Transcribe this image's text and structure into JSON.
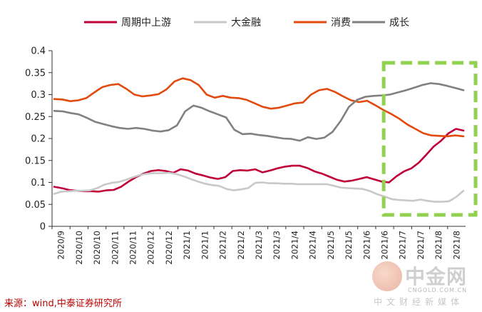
{
  "chart_data": {
    "type": "line",
    "legend_position": "top",
    "grid": false,
    "ylim": [
      0,
      0.4
    ],
    "y_ticks": [
      0,
      0.05,
      0.1,
      0.15,
      0.2,
      0.25,
      0.3,
      0.35,
      0.4
    ],
    "y_tick_labels": [
      "0",
      "0.05",
      "0.1",
      "0.15",
      "0.2",
      "0.25",
      "0.3",
      "0.35",
      "0.4"
    ],
    "x_tick_labels": [
      "2020/9",
      "2020/10",
      "2020/10",
      "2020/11",
      "2020/11",
      "2020/12",
      "2020/12",
      "2021/1",
      "2021/1",
      "2021/2",
      "2021/2",
      "2021/3",
      "2021/3",
      "2021/4",
      "2021/4",
      "2021/5",
      "2021/5",
      "2021/6",
      "2021/6",
      "2021/7",
      "2021/7",
      "2021/8",
      "2021/8"
    ],
    "highlight_box": {
      "color": "#92d050",
      "style": "dashed",
      "from_tick_index": 19
    },
    "series": [
      {
        "name": "周期中上游",
        "color": "#c00039",
        "values": [
          0.09,
          0.087,
          0.083,
          0.081,
          0.08,
          0.08,
          0.079,
          0.082,
          0.083,
          0.09,
          0.102,
          0.112,
          0.12,
          0.126,
          0.128,
          0.126,
          0.122,
          0.13,
          0.127,
          0.12,
          0.116,
          0.111,
          0.108,
          0.112,
          0.126,
          0.128,
          0.127,
          0.13,
          0.123,
          0.127,
          0.132,
          0.136,
          0.138,
          0.138,
          0.133,
          0.125,
          0.12,
          0.113,
          0.106,
          0.102,
          0.104,
          0.108,
          0.112,
          0.107,
          0.102,
          0.1,
          0.114,
          0.125,
          0.132,
          0.145,
          0.163,
          0.182,
          0.195,
          0.212,
          0.222,
          0.218
        ]
      },
      {
        "name": "大金融",
        "color": "#c8c8c8",
        "values": [
          0.074,
          0.079,
          0.08,
          0.081,
          0.081,
          0.082,
          0.087,
          0.095,
          0.099,
          0.101,
          0.106,
          0.112,
          0.117,
          0.12,
          0.121,
          0.121,
          0.122,
          0.119,
          0.114,
          0.108,
          0.102,
          0.097,
          0.094,
          0.092,
          0.085,
          0.082,
          0.084,
          0.087,
          0.099,
          0.1,
          0.098,
          0.098,
          0.097,
          0.097,
          0.096,
          0.096,
          0.096,
          0.096,
          0.096,
          0.092,
          0.088,
          0.087,
          0.086,
          0.085,
          0.08,
          0.073,
          0.068,
          0.062,
          0.06,
          0.059,
          0.058,
          0.061,
          0.058,
          0.056,
          0.056,
          0.057,
          0.067,
          0.081
        ]
      },
      {
        "name": "消费",
        "color": "#e34a0e",
        "values": [
          0.29,
          0.289,
          0.285,
          0.287,
          0.292,
          0.305,
          0.317,
          0.322,
          0.324,
          0.313,
          0.3,
          0.296,
          0.298,
          0.301,
          0.312,
          0.33,
          0.337,
          0.333,
          0.322,
          0.3,
          0.293,
          0.297,
          0.293,
          0.292,
          0.288,
          0.28,
          0.272,
          0.268,
          0.27,
          0.275,
          0.28,
          0.282,
          0.3,
          0.31,
          0.313,
          0.306,
          0.296,
          0.287,
          0.283,
          0.286,
          0.276,
          0.265,
          0.256,
          0.245,
          0.232,
          0.222,
          0.212,
          0.207,
          0.206,
          0.205,
          0.207,
          0.205
        ]
      },
      {
        "name": "成长",
        "color": "#808080",
        "values": [
          0.263,
          0.262,
          0.258,
          0.255,
          0.247,
          0.238,
          0.233,
          0.228,
          0.224,
          0.222,
          0.224,
          0.222,
          0.218,
          0.216,
          0.219,
          0.23,
          0.262,
          0.275,
          0.27,
          0.262,
          0.255,
          0.248,
          0.22,
          0.21,
          0.211,
          0.208,
          0.206,
          0.203,
          0.2,
          0.199,
          0.195,
          0.203,
          0.199,
          0.202,
          0.215,
          0.24,
          0.272,
          0.288,
          0.295,
          0.297,
          0.298,
          0.3,
          0.305,
          0.31,
          0.316,
          0.322,
          0.326,
          0.324,
          0.32,
          0.315,
          0.31
        ]
      }
    ]
  },
  "source_text": "来源：wind,中泰证券研究所",
  "watermark": {
    "brand": "中金网",
    "site": "CNGOLD.COM.CN",
    "slogan": "中文财经新媒体"
  }
}
